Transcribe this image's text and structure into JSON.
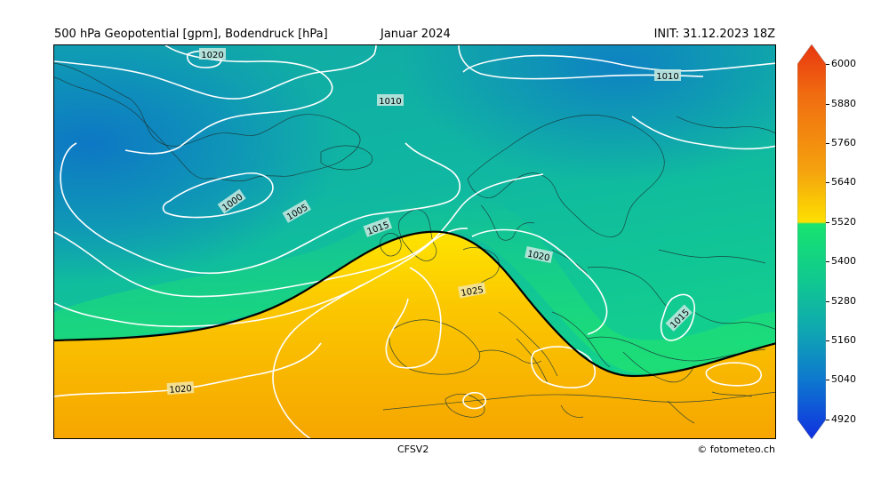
{
  "header": {
    "title_left": "500 hPa Geopotential [gpm], Bodendruck [hPa]",
    "title_center": "Januar 2024",
    "title_right": "INIT: 31.12.2023 18Z"
  },
  "footer": {
    "model": "CFSV2",
    "copyright": "© fotometeo.ch"
  },
  "map": {
    "region": "Nordatlantik und Europa",
    "isobar_labels": [
      "1020",
      "1010",
      "1010",
      "1000",
      "1005",
      "1015",
      "1020",
      "1025",
      "1015",
      "1020"
    ],
    "contour_5520_color": "#000000",
    "isobar_color": "#ffffff"
  },
  "colorbar": {
    "ticks": [
      "6000",
      "5880",
      "5760",
      "5640",
      "5520",
      "5400",
      "5280",
      "5160",
      "5040",
      "4920"
    ],
    "min": 4860,
    "max": 6060,
    "colors": {
      "top": "#e8350f",
      "orange": "#f59a10",
      "yellow": "#fff200",
      "green": "#14e870",
      "teal": "#0fb89a",
      "blue": "#0f6fd0",
      "bottom": "#1030e0"
    }
  }
}
